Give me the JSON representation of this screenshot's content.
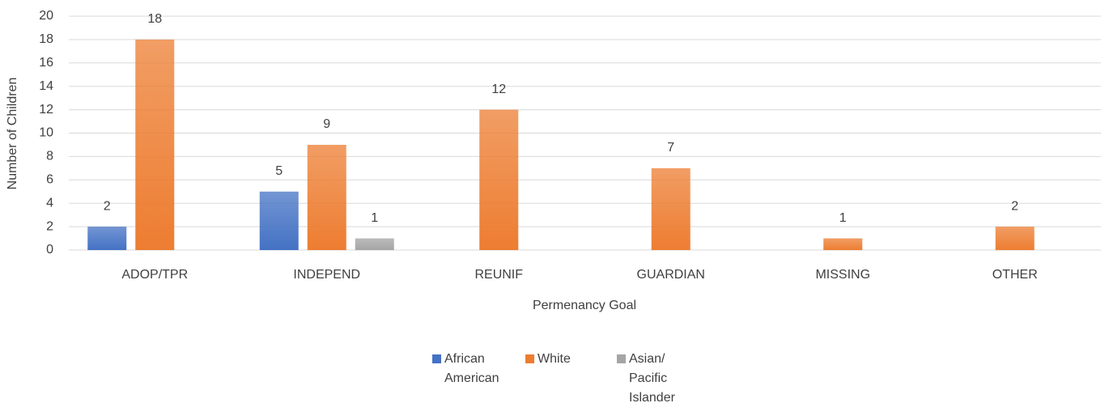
{
  "chart_data": {
    "type": "bar",
    "x_label": "Permenancy Goal",
    "y_label": "Number of Children",
    "categories": [
      "ADOP/TPR",
      "INDEPEND",
      "REUNIF",
      "GUARDIAN",
      "MISSING",
      "OTHER"
    ],
    "series": [
      {
        "name": "African American",
        "color": "#4472c4",
        "values": [
          2,
          5,
          null,
          null,
          null,
          null
        ]
      },
      {
        "name": "White",
        "color": "#ed7d31",
        "values": [
          18,
          9,
          12,
          7,
          1,
          2
        ]
      },
      {
        "name": "Asian/ Pacific Islander",
        "color": "#a5a5a5",
        "values": [
          null,
          1,
          null,
          null,
          null,
          null
        ]
      }
    ],
    "ylim": [
      0,
      20
    ],
    "yticks": [
      0,
      2,
      4,
      6,
      8,
      10,
      12,
      14,
      16,
      18,
      20
    ],
    "grid": true,
    "legend": "bottom"
  }
}
